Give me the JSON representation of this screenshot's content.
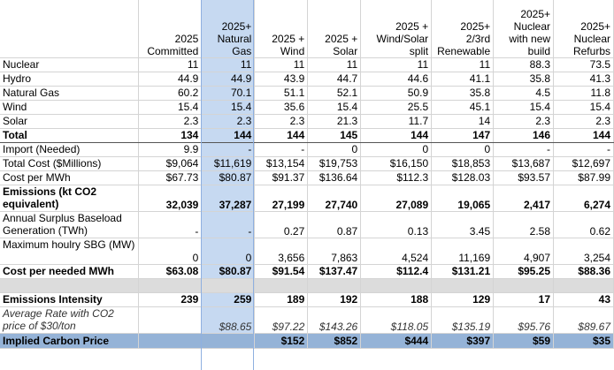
{
  "columns": [
    "",
    "2025 Committed",
    "2025+ Natural Gas",
    "2025 + Wind",
    "2025 + Solar",
    "2025 + Wind/Solar split",
    "2025+ 2/3rd Renewable",
    "2025+ Nuclear with new build",
    "2025+ Nuclear Refurbs"
  ],
  "rows": [
    {
      "label": "Nuclear",
      "values": [
        "11",
        "11",
        "11",
        "11",
        "11",
        "11",
        "88.3",
        "73.5"
      ]
    },
    {
      "label": "Hydro",
      "values": [
        "44.9",
        "44.9",
        "43.9",
        "44.7",
        "44.6",
        "41.1",
        "35.8",
        "41.3"
      ]
    },
    {
      "label": "Natural Gas",
      "values": [
        "60.2",
        "70.1",
        "51.1",
        "52.1",
        "50.9",
        "35.8",
        "4.5",
        "11.8"
      ]
    },
    {
      "label": "Wind",
      "values": [
        "15.4",
        "15.4",
        "35.6",
        "15.4",
        "25.5",
        "45.1",
        "15.4",
        "15.4"
      ]
    },
    {
      "label": "Solar",
      "values": [
        "2.3",
        "2.3",
        "2.3",
        "21.3",
        "11.7",
        "14",
        "2.3",
        "2.3"
      ]
    },
    {
      "label": "Total",
      "values": [
        "134",
        "144",
        "144",
        "145",
        "144",
        "147",
        "146",
        "144"
      ]
    },
    {
      "label": "Import (Needed)",
      "values": [
        "9.9",
        "-",
        "-",
        "0",
        "0",
        "0",
        "-",
        "-"
      ]
    },
    {
      "label": "Total Cost ($Millions)",
      "values": [
        "$9,064",
        "$11,619",
        "$13,154",
        "$19,753",
        "$16,150",
        "$18,853",
        "$13,687",
        "$12,697"
      ]
    },
    {
      "label": "Cost per MWh",
      "values": [
        "$67.73",
        "$80.87",
        "$91.37",
        "$136.64",
        "$112.3",
        "$128.03",
        "$93.57",
        "$87.99"
      ]
    },
    {
      "label": "Emissions (kt CO2 equivalent)",
      "values": [
        "32,039",
        "37,287",
        "27,199",
        "27,740",
        "27,089",
        "19,065",
        "2,417",
        "6,274"
      ]
    },
    {
      "label": "Annual Surplus Baseload Generation (TWh)",
      "values": [
        "-",
        "-",
        "0.27",
        "0.87",
        "0.13",
        "3.45",
        "2.58",
        "0.62"
      ]
    },
    {
      "label": "Maximum houlry SBG (MW)",
      "values": [
        "0",
        "0",
        "3,656",
        "7,863",
        "4,524",
        "11,169",
        "4,907",
        "3,254"
      ]
    },
    {
      "label": "Cost per needed MWh",
      "values": [
        "$63.08",
        "$80.87",
        "$91.54",
        "$137.47",
        "$112.4",
        "$131.21",
        "$95.25",
        "$88.36"
      ]
    },
    {
      "label": "",
      "values": [
        "",
        "",
        "",
        "",
        "",
        "",
        "",
        ""
      ]
    },
    {
      "label": "Emissions Intensity",
      "values": [
        "239",
        "259",
        "189",
        "192",
        "188",
        "129",
        "17",
        "43"
      ]
    },
    {
      "label": "Average Rate with CO2 price of $30/ton",
      "values": [
        "",
        "$88.65",
        "$97.22",
        "$143.26",
        "$118.05",
        "$135.19",
        "$95.76",
        "$89.67"
      ]
    },
    {
      "label": "Implied Carbon Price",
      "values": [
        "",
        "",
        "$152",
        "$852",
        "$444",
        "$397",
        "$59",
        "$35"
      ]
    }
  ],
  "colors": {
    "selected_column": "#c6d9f1",
    "carbon_row": "#95b3d7",
    "gap_row": "#dcdcdc"
  }
}
